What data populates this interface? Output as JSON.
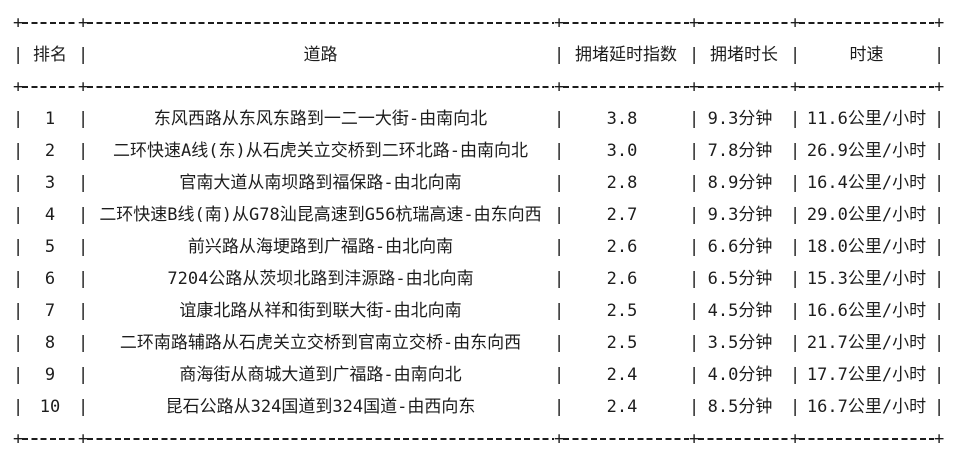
{
  "chars": {
    "cross": "+",
    "v": "|"
  },
  "table": {
    "columns": [
      "排名",
      "道路",
      "拥堵延时指数",
      "拥堵时长",
      "时速"
    ],
    "rows": [
      {
        "rank": "1",
        "road": "东风西路从东风东路到一二一大街-由南向北",
        "delay_index": "3.8",
        "duration": "9.3分钟",
        "speed": "11.6公里/小时"
      },
      {
        "rank": "2",
        "road": "二环快速A线(东)从石虎关立交桥到二环北路-由南向北",
        "delay_index": "3.0",
        "duration": "7.8分钟",
        "speed": "26.9公里/小时"
      },
      {
        "rank": "3",
        "road": "官南大道从南坝路到福保路-由北向南",
        "delay_index": "2.8",
        "duration": "8.9分钟",
        "speed": "16.4公里/小时"
      },
      {
        "rank": "4",
        "road": "二环快速B线(南)从G78汕昆高速到G56杭瑞高速-由东向西",
        "delay_index": "2.7",
        "duration": "9.3分钟",
        "speed": "29.0公里/小时"
      },
      {
        "rank": "5",
        "road": "前兴路从海埂路到广福路-由北向南",
        "delay_index": "2.6",
        "duration": "6.6分钟",
        "speed": "18.0公里/小时"
      },
      {
        "rank": "6",
        "road": "7204公路从茨坝北路到沣源路-由北向南",
        "delay_index": "2.6",
        "duration": "6.5分钟",
        "speed": "15.3公里/小时"
      },
      {
        "rank": "7",
        "road": "谊康北路从祥和街到联大街-由北向南",
        "delay_index": "2.5",
        "duration": "4.5分钟",
        "speed": "16.6公里/小时"
      },
      {
        "rank": "8",
        "road": "二环南路辅路从石虎关立交桥到官南立交桥-由东向西",
        "delay_index": "2.5",
        "duration": "3.5分钟",
        "speed": "21.7公里/小时"
      },
      {
        "rank": "9",
        "road": "商海街从商城大道到广福路-由南向北",
        "delay_index": "2.4",
        "duration": "4.0分钟",
        "speed": "17.7公里/小时"
      },
      {
        "rank": "10",
        "road": "昆石公路从324国道到324国道-由西向东",
        "delay_index": "2.4",
        "duration": "8.5分钟",
        "speed": "16.7公里/小时"
      }
    ]
  }
}
